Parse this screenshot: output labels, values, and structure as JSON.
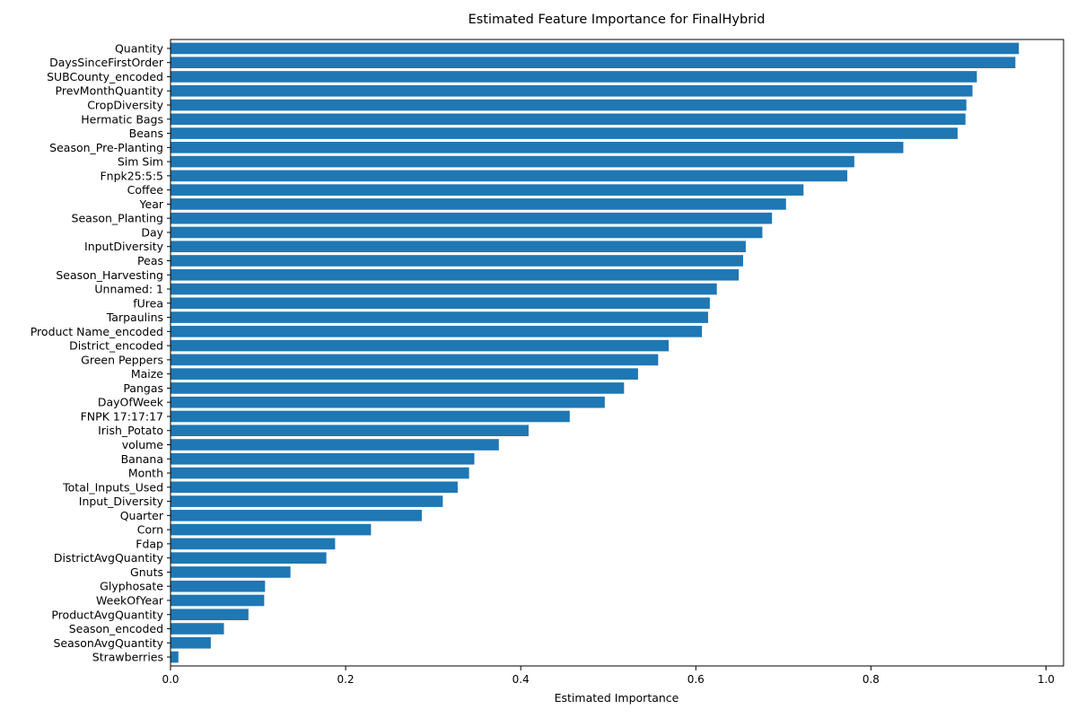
{
  "chart_data": {
    "type": "bar",
    "orientation": "horizontal",
    "title": "Estimated Feature Importance for FinalHybrid",
    "xlabel": "Estimated Importance",
    "ylabel": "",
    "xlim": [
      0,
      1.02
    ],
    "xticks": [
      0.0,
      0.2,
      0.4,
      0.6,
      0.8,
      1.0
    ],
    "xtick_labels": [
      "0.0",
      "0.2",
      "0.4",
      "0.6",
      "0.8",
      "1.0"
    ],
    "grid": false,
    "bar_color": "#1f77b4",
    "categories": [
      "Quantity",
      "DaysSinceFirstOrder",
      "SUBCounty_encoded",
      "PrevMonthQuantity",
      "CropDiversity",
      "Hermatic Bags",
      "Beans",
      "Season_Pre-Planting",
      "Sim Sim",
      "Fnpk25:5:5",
      "Coffee",
      "Year",
      "Season_Planting",
      "Day",
      "InputDiversity",
      "Peas",
      "Season_Harvesting",
      "Unnamed: 1",
      "fUrea",
      "Tarpaulins",
      "Product Name_encoded",
      "District_encoded",
      "Green Peppers",
      "Maize",
      "Pangas",
      "DayOfWeek",
      "FNPK 17:17:17",
      "Irish_Potato",
      "volume",
      "Banana",
      "Month",
      "Total_Inputs_Used",
      "Input_Diversity",
      "Quarter",
      "Corn",
      "Fdap",
      "DistrictAvgQuantity",
      "Gnuts",
      "Glyphosate",
      "WeekOfYear",
      "ProductAvgQuantity",
      "Season_encoded",
      "SeasonAvgQuantity",
      "Strawberries"
    ],
    "values": [
      0.969,
      0.965,
      0.921,
      0.916,
      0.909,
      0.908,
      0.899,
      0.837,
      0.781,
      0.773,
      0.723,
      0.703,
      0.687,
      0.676,
      0.657,
      0.654,
      0.649,
      0.624,
      0.616,
      0.614,
      0.607,
      0.569,
      0.557,
      0.534,
      0.518,
      0.496,
      0.456,
      0.409,
      0.375,
      0.347,
      0.341,
      0.328,
      0.311,
      0.287,
      0.229,
      0.188,
      0.178,
      0.137,
      0.108,
      0.107,
      0.089,
      0.061,
      0.046,
      0.009
    ]
  }
}
